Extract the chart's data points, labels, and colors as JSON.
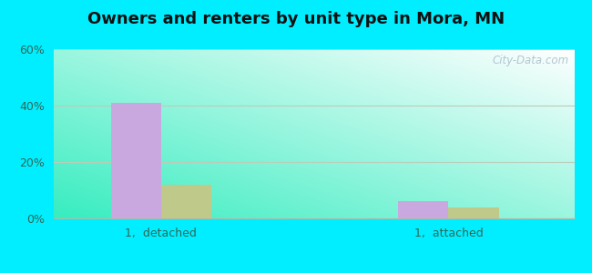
{
  "title": "Owners and renters by unit type in Mora, MN",
  "categories": [
    "1,  detached",
    "1,  attached"
  ],
  "owner_values": [
    41.0,
    6.0
  ],
  "renter_values": [
    12.0,
    4.0
  ],
  "owner_color": "#c9a8df",
  "renter_color": "#bec98a",
  "ylim": [
    0,
    60
  ],
  "yticks": [
    0,
    20,
    40,
    60
  ],
  "yticklabels": [
    "0%",
    "20%",
    "40%",
    "60%"
  ],
  "bg_outer": "#00eeff",
  "bar_width": 0.28,
  "title_fontsize": 13,
  "watermark": "City-Data.com"
}
